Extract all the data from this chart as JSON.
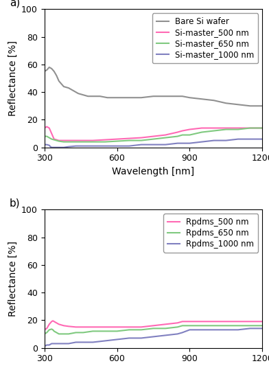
{
  "xlim": [
    300,
    1200
  ],
  "ylim": [
    0,
    100
  ],
  "xlabel": "Wavelength [nm]",
  "ylabel": "Reflectance [%]",
  "xticks": [
    300,
    600,
    900,
    1200
  ],
  "yticks": [
    0,
    20,
    40,
    60,
    80,
    100
  ],
  "panel_a": {
    "label": "a)",
    "legend_labels": [
      "Bare Si wafer",
      "Si-master_500 nm",
      "Si-master_650 nm",
      "Si-master_1000 nm"
    ],
    "colors": [
      "#909090",
      "#ff69b4",
      "#7fc97f",
      "#8080c0"
    ],
    "bare_si": {
      "x": [
        300,
        310,
        320,
        330,
        340,
        350,
        360,
        380,
        400,
        420,
        440,
        460,
        480,
        500,
        530,
        560,
        600,
        650,
        700,
        750,
        800,
        850,
        870,
        900,
        950,
        1000,
        1050,
        1100,
        1150,
        1200
      ],
      "y": [
        55,
        56,
        58,
        57,
        55,
        52,
        48,
        44,
        43,
        41,
        39,
        38,
        37,
        37,
        37,
        36,
        36,
        36,
        36,
        37,
        37,
        37,
        37,
        36,
        35,
        34,
        32,
        31,
        30,
        30
      ]
    },
    "si500": {
      "x": [
        300,
        310,
        320,
        325,
        330,
        335,
        340,
        350,
        360,
        380,
        400,
        430,
        460,
        500,
        550,
        600,
        650,
        700,
        750,
        800,
        850,
        870,
        900,
        950,
        1000,
        1050,
        1100,
        1150,
        1200
      ],
      "y": [
        14,
        15,
        14,
        12,
        10,
        8,
        6,
        5.5,
        5,
        5,
        5,
        5,
        5,
        5,
        5.5,
        6,
        6.5,
        7,
        8,
        9,
        11,
        12,
        13,
        14,
        14,
        14,
        14,
        14,
        14
      ]
    },
    "si650": {
      "x": [
        300,
        310,
        320,
        330,
        340,
        360,
        380,
        400,
        430,
        460,
        500,
        550,
        600,
        650,
        700,
        750,
        800,
        850,
        870,
        900,
        950,
        1000,
        1050,
        1100,
        1150,
        1200
      ],
      "y": [
        8,
        8,
        7,
        6,
        5.5,
        4.5,
        4,
        4,
        4,
        4,
        4,
        4,
        4.5,
        5,
        5,
        6,
        7,
        8,
        9,
        9,
        11,
        12,
        13,
        13,
        14,
        14
      ]
    },
    "si1000": {
      "x": [
        300,
        310,
        320,
        325,
        330,
        335,
        340,
        360,
        380,
        400,
        430,
        460,
        500,
        550,
        600,
        650,
        700,
        750,
        800,
        850,
        900,
        950,
        1000,
        1050,
        1100,
        1150,
        1200
      ],
      "y": [
        2,
        2,
        1.5,
        0.5,
        0,
        0,
        0,
        0,
        0,
        0.5,
        1,
        1,
        1,
        1,
        1,
        1,
        2,
        2,
        2,
        3,
        3,
        4,
        5,
        5,
        6,
        6,
        6
      ]
    }
  },
  "panel_b": {
    "label": "b)",
    "legend_labels": [
      "Rpdms_500 nm",
      "Rpdms_650 nm",
      "Rpdms_1000 nm"
    ],
    "colors": [
      "#ff69b4",
      "#7fc97f",
      "#8080c0"
    ],
    "r500": {
      "x": [
        300,
        310,
        320,
        330,
        335,
        340,
        350,
        360,
        380,
        400,
        430,
        460,
        500,
        550,
        600,
        650,
        700,
        750,
        800,
        850,
        870,
        900,
        950,
        1000,
        1050,
        1100,
        1150,
        1200
      ],
      "y": [
        13,
        14,
        17,
        19,
        19.5,
        19,
        18,
        17,
        16,
        15.5,
        15,
        15,
        15,
        15,
        15,
        15,
        15,
        16,
        17,
        18,
        19,
        19,
        19,
        19,
        19,
        19,
        19,
        19
      ]
    },
    "r650": {
      "x": [
        300,
        310,
        320,
        330,
        335,
        340,
        350,
        360,
        380,
        400,
        430,
        460,
        500,
        550,
        600,
        650,
        700,
        750,
        800,
        850,
        870,
        900,
        950,
        1000,
        1050,
        1100,
        1150,
        1200
      ],
      "y": [
        10,
        11,
        13,
        13.5,
        13,
        12,
        11,
        10,
        10,
        10,
        11,
        11,
        12,
        12,
        12,
        13,
        13,
        14,
        14,
        15,
        16,
        16,
        16,
        16,
        16,
        16,
        16,
        16
      ]
    },
    "r1000": {
      "x": [
        300,
        310,
        320,
        330,
        340,
        360,
        380,
        400,
        430,
        460,
        500,
        550,
        600,
        650,
        700,
        750,
        800,
        850,
        870,
        900,
        950,
        1000,
        1050,
        1100,
        1150,
        1200
      ],
      "y": [
        1,
        2,
        2,
        3,
        3,
        3,
        3,
        3,
        4,
        4,
        4,
        5,
        6,
        7,
        7,
        8,
        9,
        10,
        11,
        13,
        13,
        13,
        13,
        13,
        14,
        14
      ]
    }
  },
  "title_fontsize": 11,
  "label_fontsize": 10,
  "tick_fontsize": 9,
  "legend_fontsize": 8.5,
  "linewidth": 1.5
}
